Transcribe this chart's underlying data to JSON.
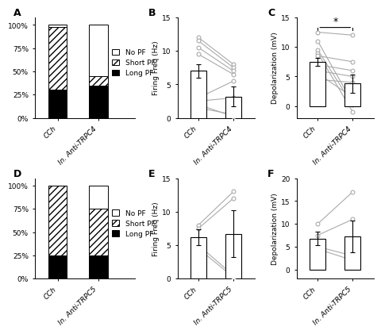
{
  "panel_A": {
    "label": "A",
    "categories": [
      "CCh",
      "In. Anti-TRPC4"
    ],
    "long_pf": [
      30,
      35
    ],
    "short_pf": [
      68,
      10
    ],
    "no_pf": [
      2,
      55
    ],
    "yticks": [
      0,
      25,
      50,
      75,
      100
    ],
    "ytick_labels": [
      "0%",
      "25%",
      "50%",
      "75%",
      "100%"
    ]
  },
  "panel_B": {
    "label": "B",
    "categories": [
      "CCh",
      "In. Anti-TRPC4"
    ],
    "bar_means": [
      7.0,
      3.2
    ],
    "bar_sems": [
      1.0,
      1.5
    ],
    "ylabel": "Firing Freq (Hz)",
    "ylim": [
      0,
      15
    ],
    "yticks": [
      0,
      5,
      10,
      15
    ],
    "paired_data": [
      [
        12.0,
        8.0
      ],
      [
        11.5,
        7.5
      ],
      [
        10.5,
        7.0
      ],
      [
        9.5,
        6.5
      ],
      [
        3.0,
        5.5
      ],
      [
        2.5,
        3.0
      ],
      [
        1.5,
        0.5
      ],
      [
        2.0,
        0.2
      ]
    ]
  },
  "panel_C": {
    "label": "C",
    "categories": [
      "CCh",
      "In. Anti-TRPC4"
    ],
    "bar_means": [
      7.5,
      3.8
    ],
    "bar_sems": [
      0.7,
      1.5
    ],
    "ylabel": "Depolarization (mV)",
    "ylim": [
      -2,
      15
    ],
    "yticks": [
      0,
      5,
      10,
      15
    ],
    "significance": "*",
    "paired_data": [
      [
        12.5,
        12.0
      ],
      [
        11.0,
        0.5
      ],
      [
        9.5,
        0.2
      ],
      [
        9.0,
        -1.0
      ],
      [
        8.5,
        7.5
      ],
      [
        7.0,
        6.0
      ],
      [
        6.0,
        5.0
      ],
      [
        5.5,
        1.5
      ],
      [
        4.5,
        4.0
      ]
    ]
  },
  "panel_D": {
    "label": "D",
    "categories": [
      "CCh",
      "In. Anti-TRPC5"
    ],
    "long_pf": [
      25,
      25
    ],
    "short_pf": [
      75,
      50
    ],
    "no_pf": [
      0,
      25
    ],
    "yticks": [
      0,
      25,
      50,
      75,
      100
    ],
    "ytick_labels": [
      "0%",
      "25%",
      "50%",
      "75%",
      "100%"
    ]
  },
  "panel_E": {
    "label": "E",
    "categories": [
      "CCh",
      "In. Anti-TRPC5"
    ],
    "bar_means": [
      6.2,
      6.7
    ],
    "bar_sems": [
      1.2,
      3.5
    ],
    "ylabel": "Firing Freq (Hz)",
    "ylim": [
      0,
      15
    ],
    "yticks": [
      0,
      5,
      10,
      15
    ],
    "paired_data": [
      [
        8.0,
        13.0
      ],
      [
        7.5,
        12.0
      ],
      [
        5.0,
        0.5
      ],
      [
        4.5,
        0.2
      ]
    ]
  },
  "panel_F": {
    "label": "F",
    "categories": [
      "CCh",
      "In. Anti-TRPC5"
    ],
    "bar_means": [
      6.8,
      7.2
    ],
    "bar_sems": [
      1.5,
      3.5
    ],
    "ylabel": "Depolarization (mV)",
    "ylim": [
      -2,
      20
    ],
    "yticks": [
      0,
      5,
      10,
      15,
      20
    ],
    "paired_data": [
      [
        10.0,
        17.0
      ],
      [
        7.5,
        11.0
      ],
      [
        5.0,
        3.0
      ],
      [
        4.5,
        2.0
      ]
    ]
  },
  "line_color": "#aaaaaa",
  "dot_color": "#aaaaaa",
  "fontsize": 6.5,
  "label_fontsize": 9
}
